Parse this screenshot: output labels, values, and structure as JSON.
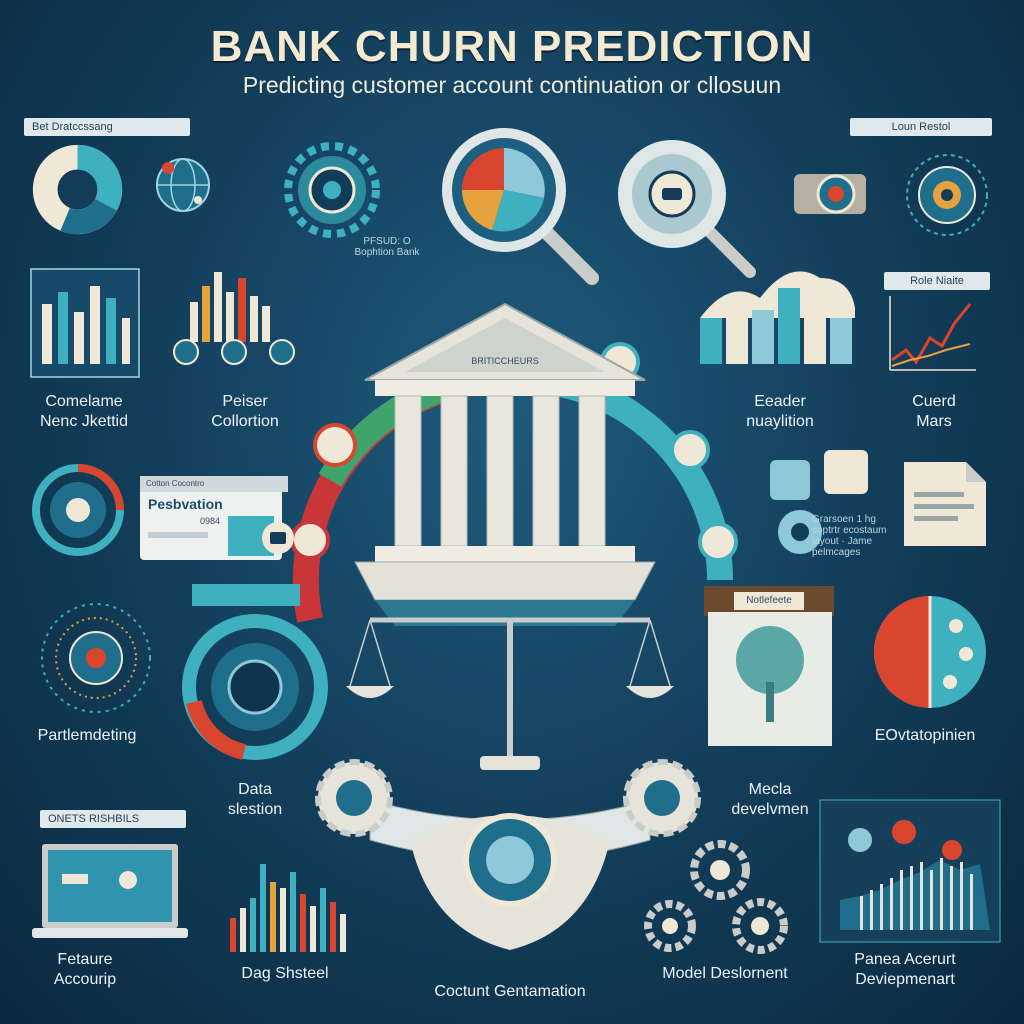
{
  "header": {
    "title": "BANK CHURN PREDICTION",
    "subtitle": "Predicting customer account continuation or cllosuun"
  },
  "tags": {
    "top_left": "Bet Dratccssang",
    "top_right": "Loun Restol",
    "right_chart": "Role Niaite",
    "profile_card": "Pesbvation",
    "profile_card_code": "0984",
    "profile_card_header": "Cotton Cocontro",
    "note_board": "Notlefeete",
    "laptop": "ONETS RISHBILS",
    "center_caption": "PFSUD: O\nBophtion Bank",
    "bank_pediment": "BRITICCHEURS"
  },
  "labels": {
    "customer_network": "Comelame\nNenc Jkettid",
    "paper_collection": "Peiser\nCollortion",
    "reader_navigation": "Eeader\nnuaylition",
    "cuerd_mars": "Cuerd\nMars",
    "parti_tracking": "Partlemdeting",
    "data_selection": "Data\nslestion",
    "gears_text": "Grarsoen 1 hg\ncoptrtr ecostaum\nlayout · Jame\npelmcages",
    "evaluation": "EOvtatopinien",
    "meta_development": "Mecla\ndevelvmen",
    "feature_accounting": "Fetaure\nAccourip",
    "data_shelted": "Dag Shsteel",
    "contact_orientation": "Coctunt Gentamation",
    "model_deployment": "Model Deslornent",
    "panel_account": "Panea Acerurt\nDeviepmenart"
  },
  "colors": {
    "background": "#123c58",
    "teal": "#3fb0bf",
    "red": "#d9452f",
    "cream": "#efe8d6",
    "title": "#f4ead2"
  }
}
